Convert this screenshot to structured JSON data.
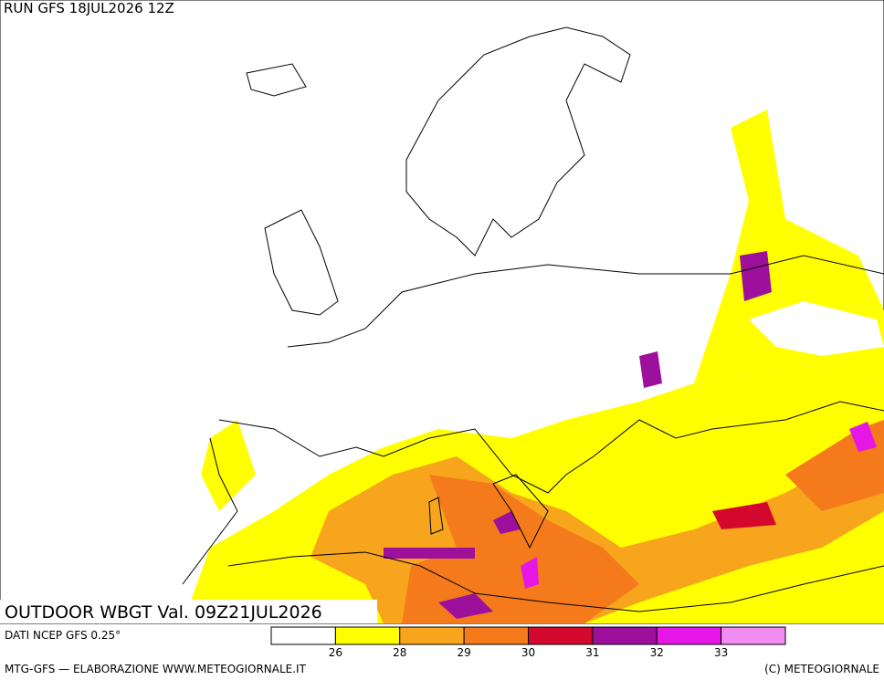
{
  "header": {
    "run": "RUN GFS 18JUL2026 12Z"
  },
  "map": {
    "caption": "OUTDOOR WBGT Val. 09Z21JUL2026"
  },
  "legend": {
    "source": "DATI NCEP GFS 0.25°",
    "colors": [
      "#ffffff",
      "#ffff00",
      "#f7a51c",
      "#f47a1c",
      "#d4082c",
      "#9c109c",
      "#e616e6",
      "#f08cf0"
    ],
    "ticks": [
      26,
      28,
      29,
      30,
      31,
      32,
      33
    ]
  },
  "footer": {
    "left": "MTG-GFS — ELABORAZIONE WWW.METEOGIORNALE.IT",
    "right": "(C) METEOGIORNALE"
  }
}
